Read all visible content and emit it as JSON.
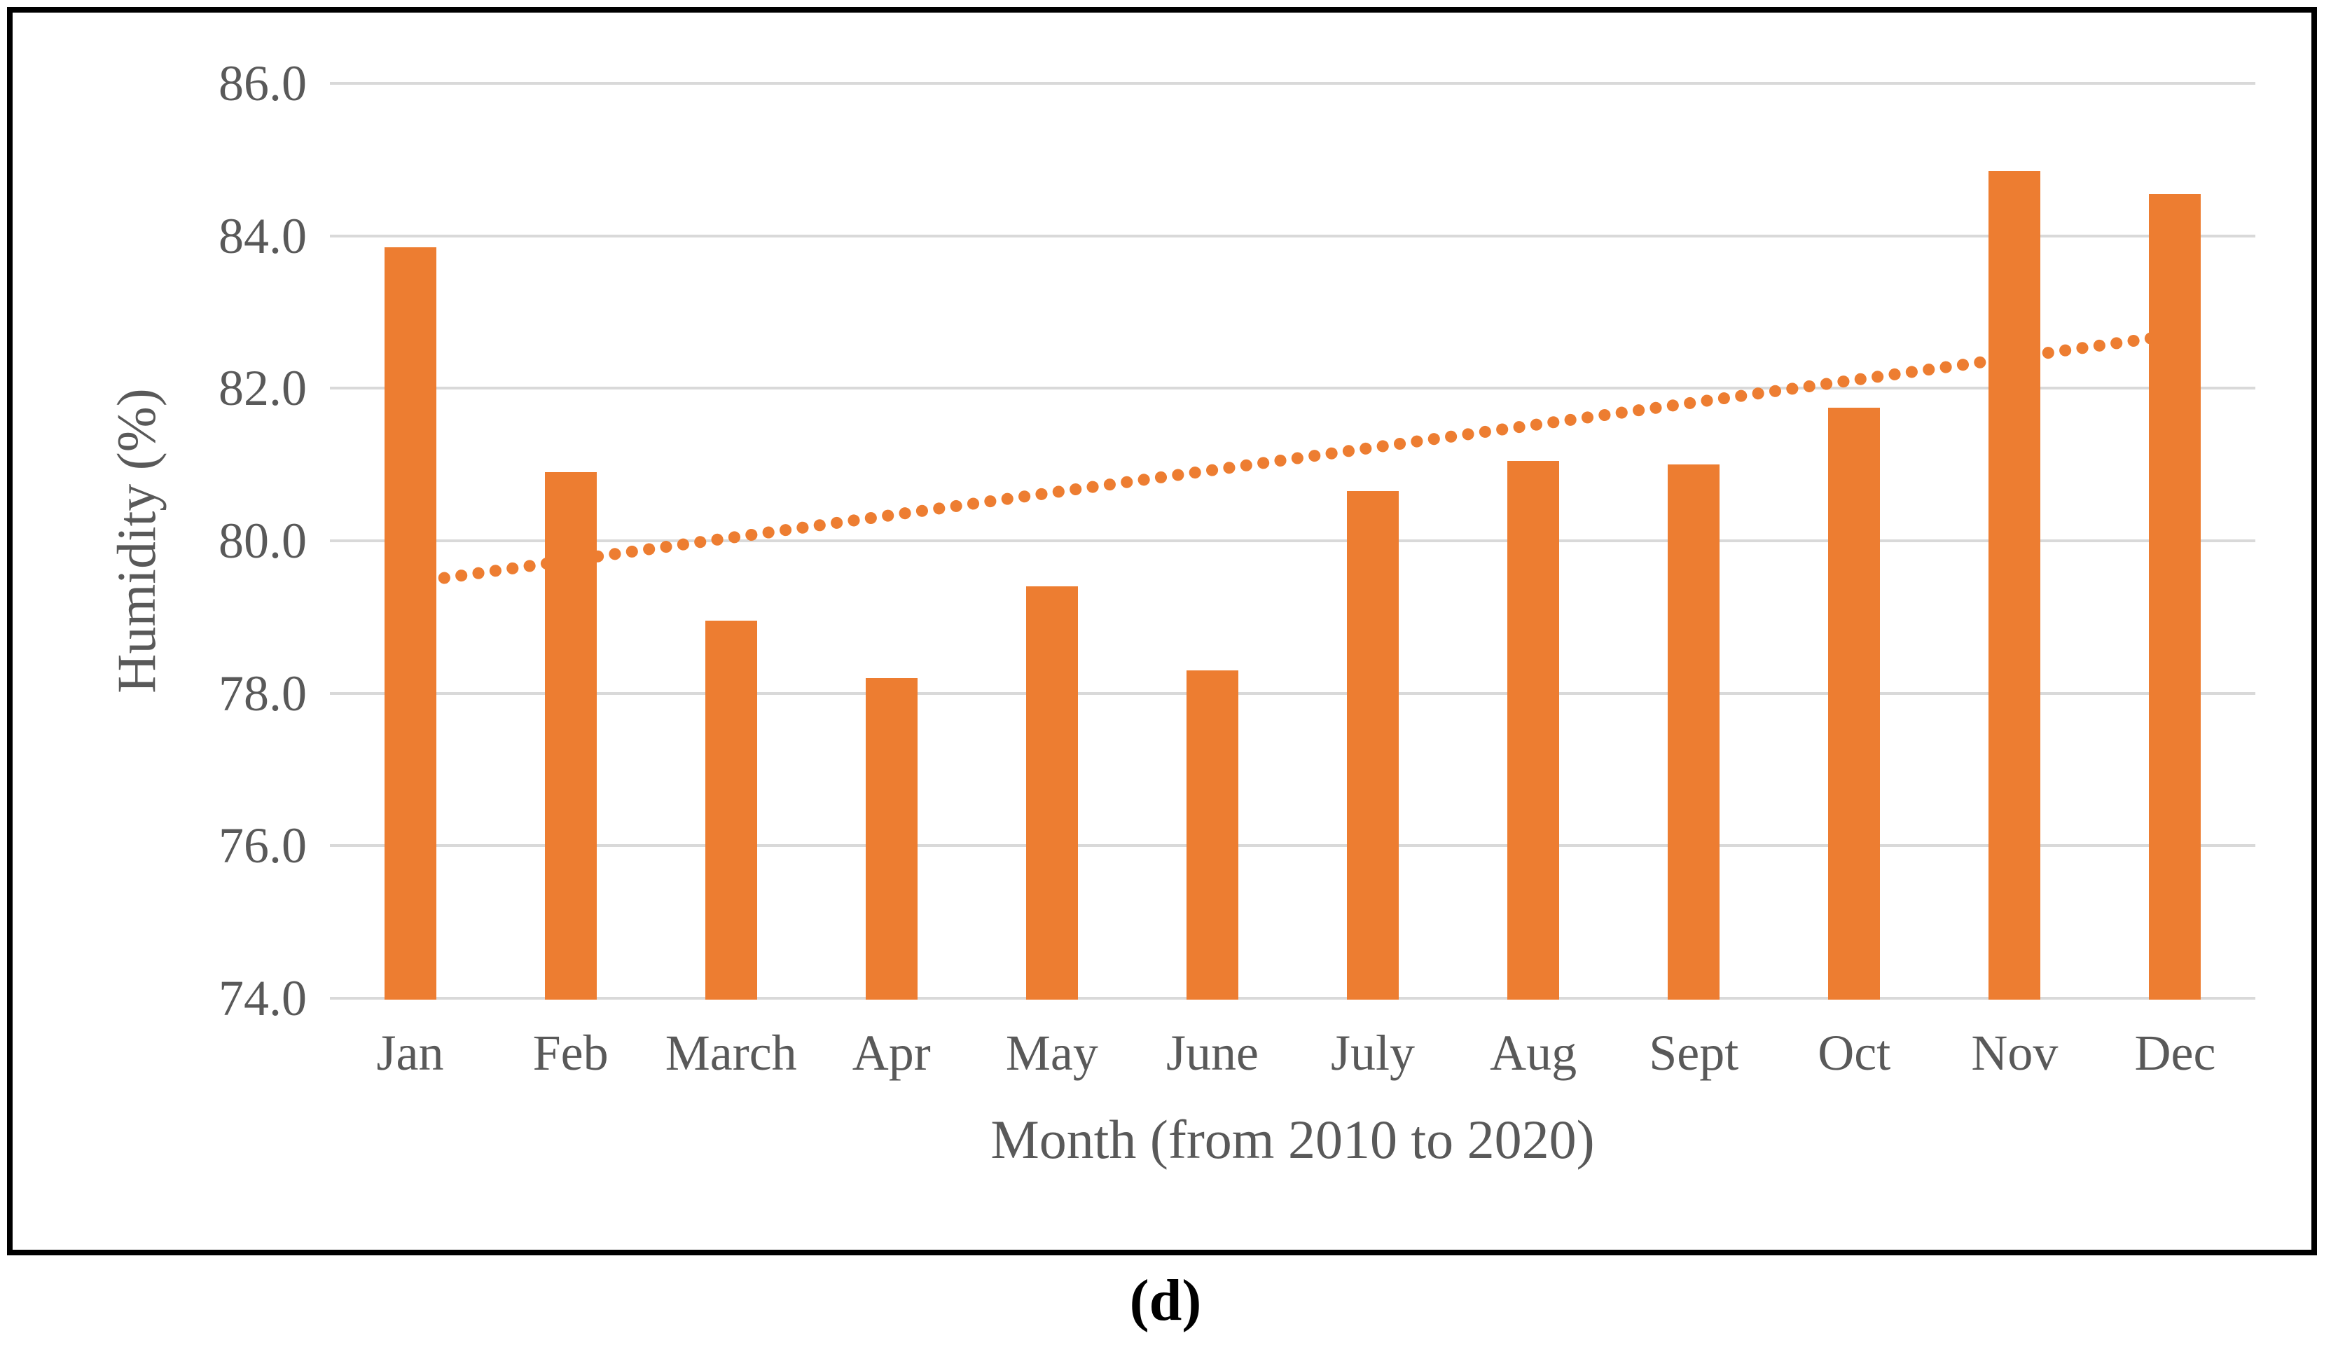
{
  "figure": {
    "caption": "(d)"
  },
  "chart_data": {
    "type": "bar",
    "title": "",
    "categories": [
      "Jan",
      "Feb",
      "March",
      "Apr",
      "May",
      "June",
      "July",
      "Aug",
      "Sept",
      "Oct",
      "Nov",
      "Dec"
    ],
    "series": [
      {
        "name": "Humidity",
        "type": "bar",
        "values": [
          83.85,
          80.9,
          78.95,
          78.2,
          79.4,
          78.3,
          80.65,
          81.05,
          81.0,
          81.75,
          84.85,
          84.55
        ]
      },
      {
        "name": "Linear trendline",
        "type": "dotted-line",
        "start_value": 79.45,
        "end_value": 82.7
      }
    ],
    "xlabel": "Month (from 2010 to 2020)",
    "ylabel": "Humidity (%)",
    "ylim": [
      74.0,
      86.0
    ],
    "ytick_step": 2.0,
    "ytick_labels": [
      "86.0",
      "84.0",
      "82.0",
      "80.0",
      "78.0",
      "76.0",
      "74.0"
    ],
    "grid": true,
    "legend": "none",
    "colors": {
      "bar": "#ED7D31",
      "trendline": "#ED7D31",
      "gridline": "#D9D9D9",
      "axis_text": "#595959",
      "frame_border": "#000000",
      "background": "#FFFFFF"
    }
  }
}
